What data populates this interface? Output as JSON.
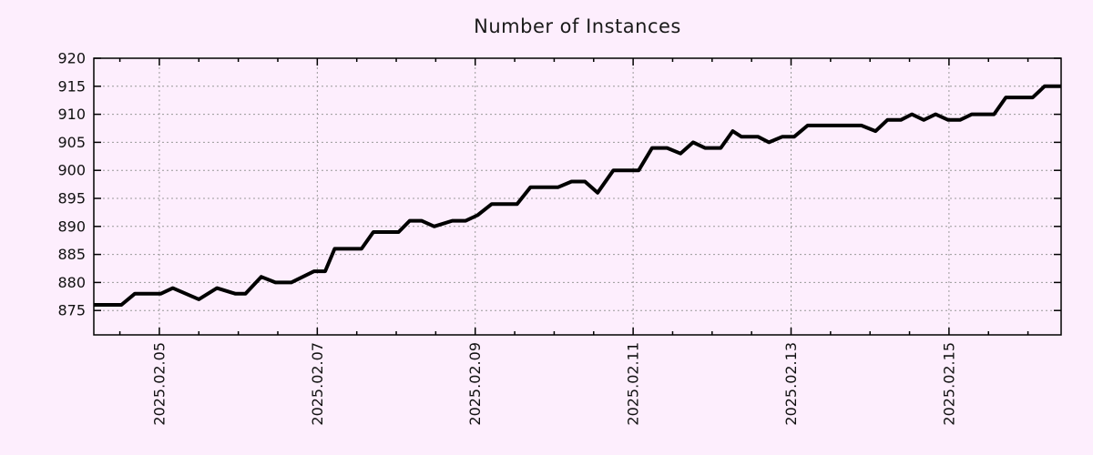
{
  "colors": {
    "background": "#fdeefd",
    "grid": "#9a9a9a",
    "axis": "#000000",
    "series_line": "#000000",
    "text": "#1a1a1a"
  },
  "chart_data": {
    "type": "line",
    "title": "Number of Instances",
    "xlabel": "",
    "ylabel": "",
    "grid": true,
    "legend": false,
    "x_axis": {
      "unit": "day of 2025-02 (fractional)",
      "range": [
        4.17,
        16.42
      ],
      "tick_positions": [
        5,
        7,
        9,
        11,
        13,
        15
      ],
      "tick_labels": [
        "2025.02.05",
        "2025.02.07",
        "2025.02.09",
        "2025.02.11",
        "2025.02.13",
        "2025.02.15"
      ],
      "minor_tick_step": 0.5,
      "labels_rotated_deg": -90
    },
    "y_axis": {
      "range": [
        870.65,
        920
      ],
      "tick_positions": [
        875,
        880,
        885,
        890,
        895,
        900,
        905,
        910,
        915,
        920
      ],
      "tick_labels": [
        "875",
        "880",
        "885",
        "890",
        "895",
        "900",
        "905",
        "910",
        "915",
        "920"
      ]
    },
    "series": [
      {
        "name": "instances",
        "color": "#000000",
        "points": [
          [
            4.17,
            876
          ],
          [
            4.52,
            876
          ],
          [
            4.69,
            878
          ],
          [
            5.02,
            878
          ],
          [
            5.17,
            879
          ],
          [
            5.5,
            877
          ],
          [
            5.73,
            879
          ],
          [
            5.96,
            878
          ],
          [
            6.09,
            878
          ],
          [
            6.29,
            881
          ],
          [
            6.47,
            880
          ],
          [
            6.67,
            880
          ],
          [
            6.96,
            882
          ],
          [
            7.1,
            882
          ],
          [
            7.22,
            886
          ],
          [
            7.56,
            886
          ],
          [
            7.71,
            889
          ],
          [
            8.03,
            889
          ],
          [
            8.17,
            891
          ],
          [
            8.32,
            891
          ],
          [
            8.48,
            890
          ],
          [
            8.71,
            891
          ],
          [
            8.88,
            891
          ],
          [
            9.03,
            892
          ],
          [
            9.21,
            894
          ],
          [
            9.53,
            894
          ],
          [
            9.7,
            897
          ],
          [
            10.05,
            897
          ],
          [
            10.22,
            898
          ],
          [
            10.39,
            898
          ],
          [
            10.55,
            896
          ],
          [
            10.75,
            900
          ],
          [
            11.07,
            900
          ],
          [
            11.24,
            904
          ],
          [
            11.43,
            904
          ],
          [
            11.6,
            903
          ],
          [
            11.76,
            905
          ],
          [
            11.91,
            904
          ],
          [
            12.11,
            904
          ],
          [
            12.26,
            907
          ],
          [
            12.37,
            906
          ],
          [
            12.58,
            906
          ],
          [
            12.72,
            905
          ],
          [
            12.89,
            906
          ],
          [
            13.04,
            906
          ],
          [
            13.21,
            908
          ],
          [
            13.89,
            908
          ],
          [
            14.07,
            907
          ],
          [
            14.22,
            909
          ],
          [
            14.39,
            909
          ],
          [
            14.53,
            910
          ],
          [
            14.68,
            909
          ],
          [
            14.83,
            910
          ],
          [
            14.99,
            909
          ],
          [
            15.14,
            909
          ],
          [
            15.29,
            910
          ],
          [
            15.57,
            910
          ],
          [
            15.72,
            913
          ],
          [
            16.06,
            913
          ],
          [
            16.21,
            915
          ],
          [
            16.42,
            915
          ]
        ]
      }
    ]
  }
}
